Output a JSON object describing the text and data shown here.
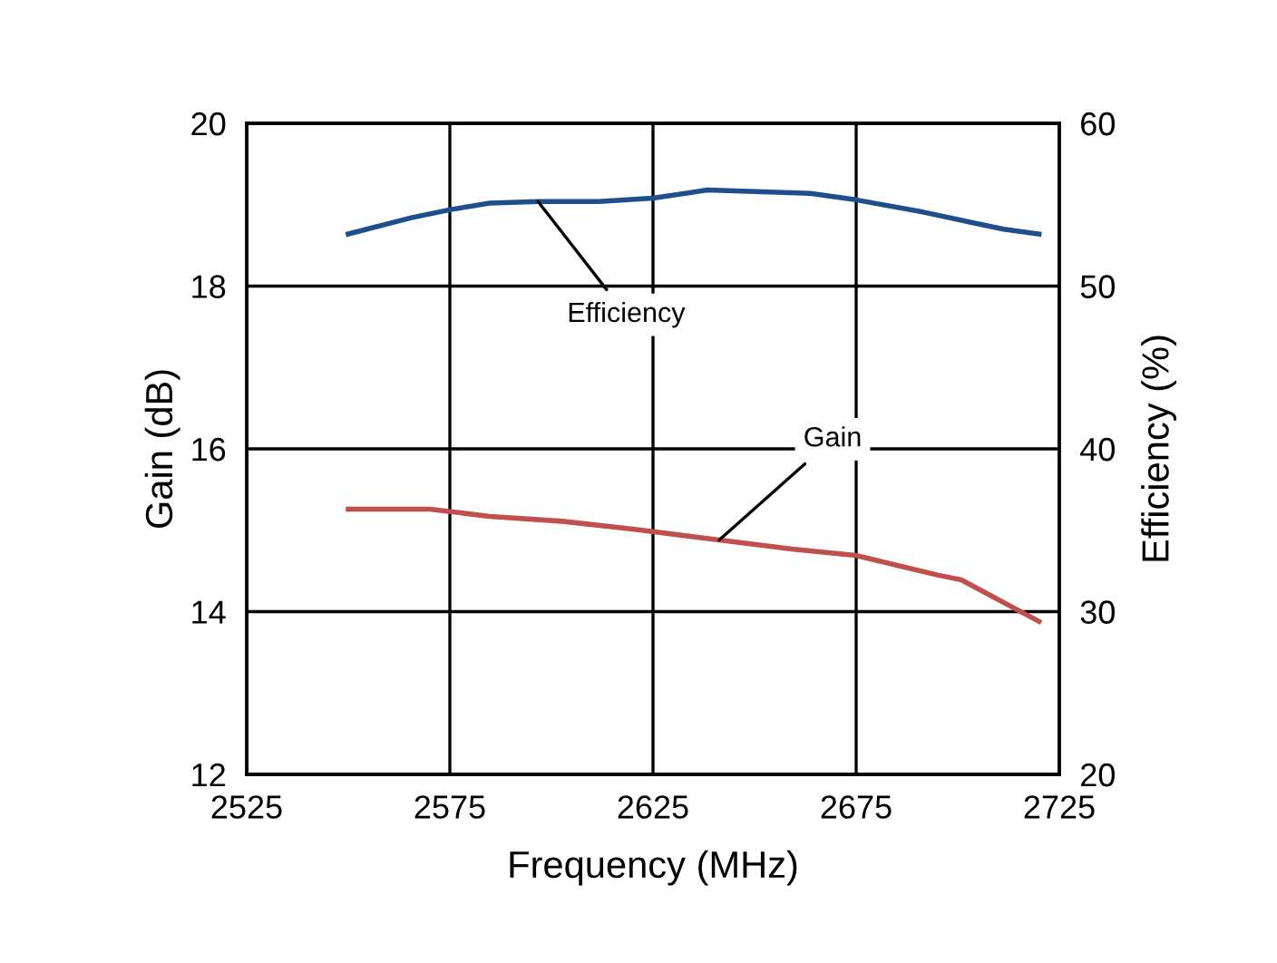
{
  "chart_data": {
    "type": "line",
    "xlabel": "Frequency (MHz)",
    "ylabel": "Gain (dB)",
    "y2label": "Efficiency (%)",
    "xlim": [
      2525,
      2725
    ],
    "xticks": [
      2525,
      2575,
      2625,
      2675,
      2725
    ],
    "ylim": [
      12,
      20
    ],
    "yticks": [
      12,
      14,
      16,
      18,
      20
    ],
    "y2lim": [
      20,
      60
    ],
    "y2ticks": [
      20,
      30,
      40,
      50,
      60
    ],
    "grid": true,
    "legend": false,
    "marker": "none",
    "line_style": "solid",
    "series": [
      {
        "name": "Efficiency",
        "color": "#1f4e8c",
        "axis": "y2",
        "x": [
          2550,
          2565.5,
          2575.2,
          2584.8,
          2596.7,
          2611.6,
          2625,
          2638.4,
          2663.7,
          2674.9,
          2690.5,
          2705.4,
          2711.3,
          2720
        ],
        "values": [
          53.2,
          54.2,
          54.7,
          55.1,
          55.2,
          55.2,
          55.4,
          55.9,
          55.7,
          55.3,
          54.6,
          53.8,
          53.5,
          53.2
        ]
      },
      {
        "name": "Gain",
        "color": "#c0504d",
        "axis": "y",
        "x": [
          2550,
          2570.1,
          2584.8,
          2602.7,
          2620.5,
          2641.3,
          2659.2,
          2674.9,
          2695,
          2700.9,
          2720
        ],
        "values": [
          15.26,
          15.26,
          15.17,
          15.11,
          15.01,
          14.88,
          14.77,
          14.69,
          14.45,
          14.39,
          13.88
        ]
      }
    ]
  }
}
